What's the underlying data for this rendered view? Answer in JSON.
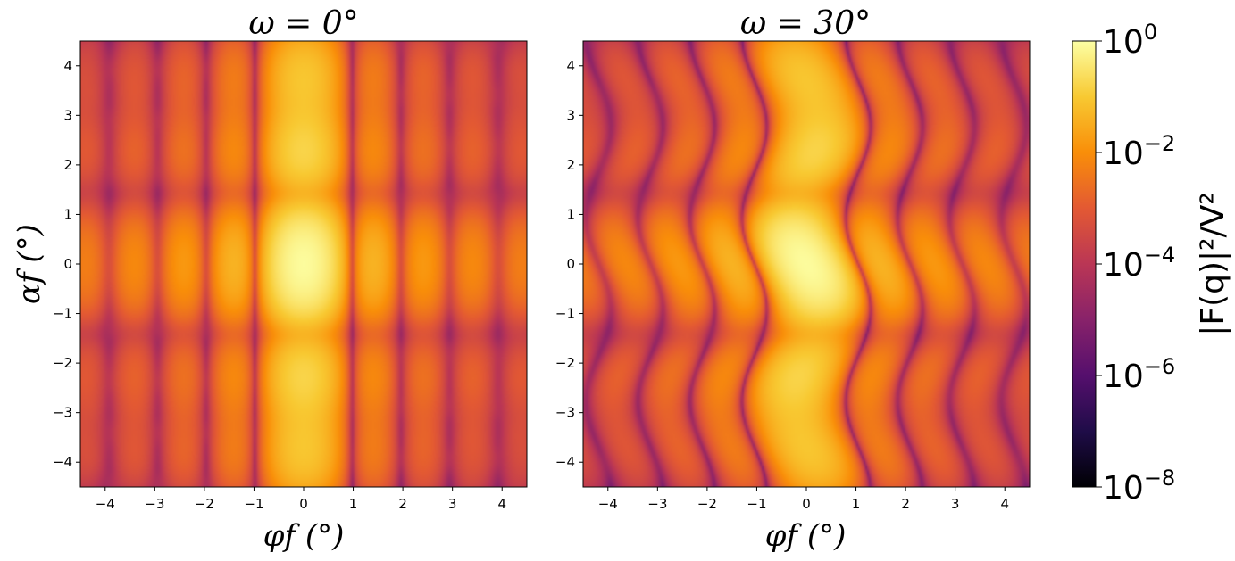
{
  "chart_data": [
    {
      "type": "heatmap",
      "title": "ω = 0°",
      "xlabel": "φf (°)",
      "ylabel": "αf (°)",
      "xlim": [
        -4.5,
        4.5
      ],
      "ylim": [
        -4.5,
        4.5
      ],
      "xticks": [
        -4,
        -3,
        -2,
        -1,
        0,
        1,
        2,
        3,
        4
      ],
      "yticks": [
        -4,
        -3,
        -2,
        -1,
        0,
        1,
        2,
        3,
        4
      ],
      "colormap": "inferno",
      "scale": "log",
      "peak": {
        "x": 0,
        "y": 0,
        "value": 1
      },
      "lobe_centers_alpha": [
        -3.6,
        -2.3,
        0,
        2.3,
        3.6
      ],
      "lobe_centers_phi": [
        0
      ]
    },
    {
      "type": "heatmap",
      "title": "ω = 30°",
      "xlabel": "φf (°)",
      "ylabel": "",
      "xlim": [
        -4.5,
        4.5
      ],
      "ylim": [
        -4.5,
        4.5
      ],
      "xticks": [
        -4,
        -3,
        -2,
        -1,
        0,
        1,
        2,
        3,
        4
      ],
      "yticks": [
        -4,
        -3,
        -2,
        -1,
        0,
        1,
        2,
        3,
        4
      ],
      "colormap": "inferno",
      "scale": "log",
      "peak": {
        "x": 0,
        "y": 0,
        "value": 1
      },
      "lobe_centers_alpha": [
        -3.6,
        -2.3,
        0,
        2.3,
        3.6
      ],
      "lobe_centers_phi": [
        0
      ]
    }
  ],
  "colorbar": {
    "label": "|F(q)|²/V²",
    "tick_bases": [
      "10",
      "10",
      "10",
      "10",
      "10"
    ],
    "tick_exponents": [
      "0",
      "−2",
      "−4",
      "−6",
      "−8"
    ],
    "tick_values": [
      1,
      0.01,
      0.0001,
      1e-06,
      1e-08
    ],
    "range": [
      1e-08,
      1
    ]
  }
}
